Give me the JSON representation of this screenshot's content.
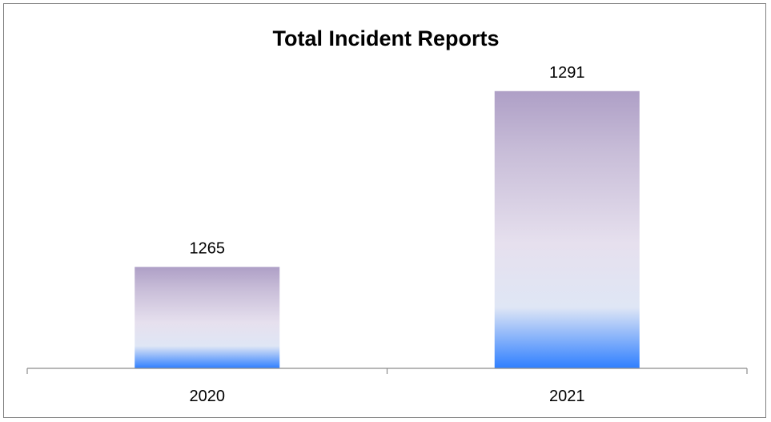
{
  "chart_data": {
    "type": "bar",
    "title": "Total Incident Reports",
    "categories": [
      "2020",
      "2021"
    ],
    "values": [
      1265,
      1291
    ],
    "data_labels": [
      "1265",
      "1291"
    ],
    "ylim": [
      1250,
      1295
    ],
    "grid": false,
    "legend": "none",
    "colors": {
      "bar_top": "#ae9fc6",
      "bar_mid": "#e6e0ee",
      "bar_bottom": "#2f7fff",
      "axis": "#8c8c8c"
    }
  }
}
